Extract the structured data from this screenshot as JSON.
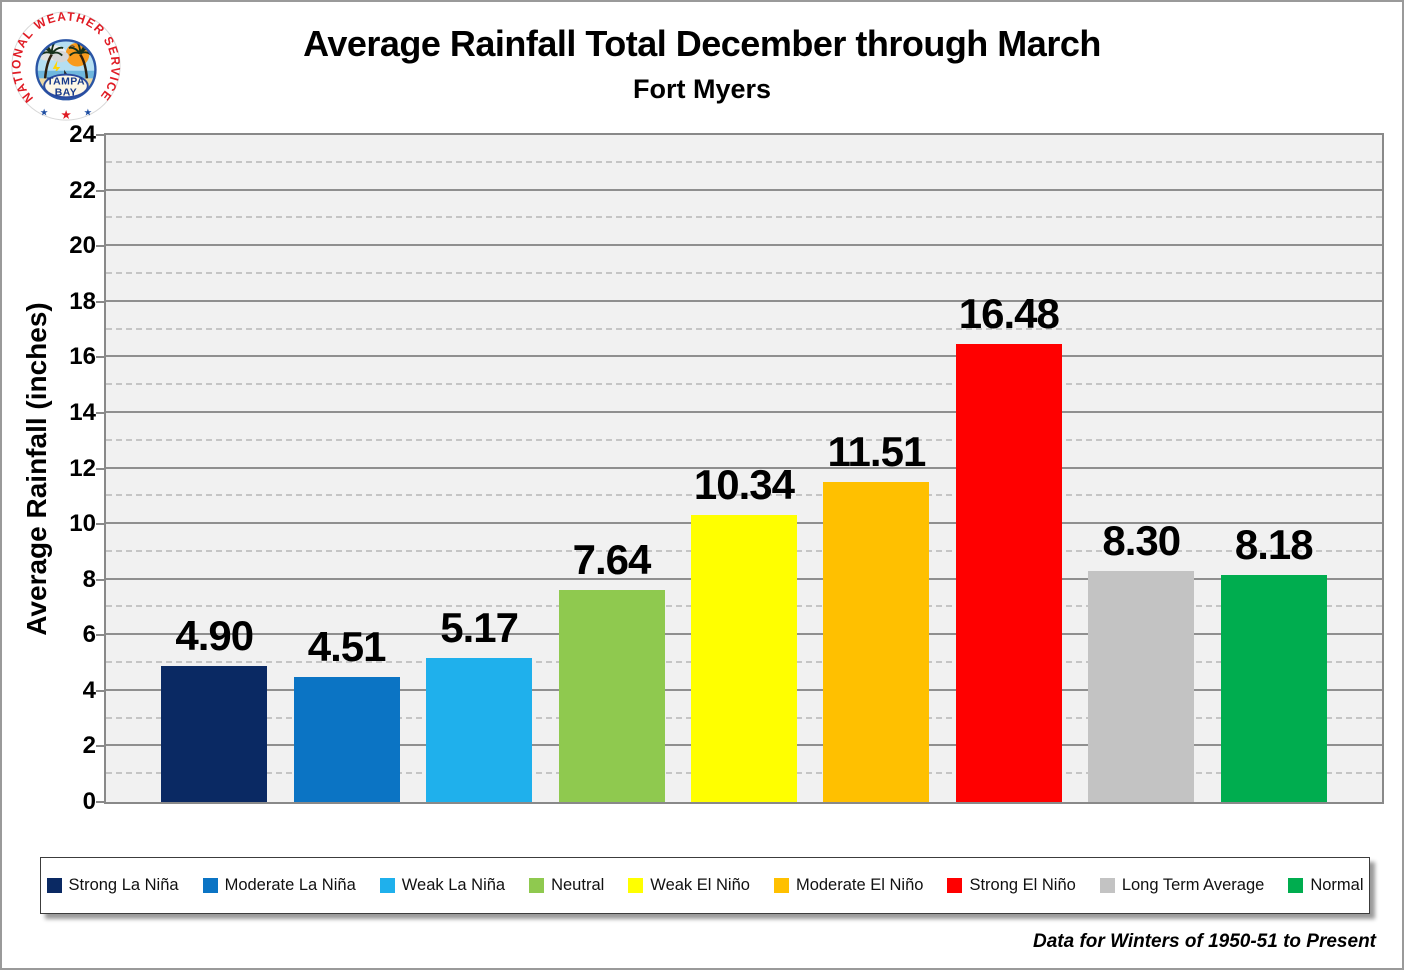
{
  "logo": {
    "ring_text": "NATIONAL WEATHER SERVICE",
    "city_line1": "TAMPA",
    "city_line2": "BAY",
    "star": "★",
    "ring_text_color": "#e01b24",
    "star_side_color": "#1d4da2",
    "star_mid_color": "#e01b24"
  },
  "chart_data": {
    "type": "bar",
    "title": "Average Rainfall Total December through March",
    "subtitle": "Fort Myers",
    "ylabel": "Average Rainfall (inches)",
    "xlabel": "",
    "categories": [
      "Strong La Niña",
      "Moderate La Niña",
      "Weak La Niña",
      "Neutral",
      "Weak El Niño",
      "Moderate El Niño",
      "Strong El Niño",
      "Long Term Average",
      "Normal"
    ],
    "values": [
      4.9,
      4.51,
      5.17,
      7.64,
      10.34,
      11.51,
      16.48,
      8.3,
      8.18
    ],
    "value_labels": [
      "4.90",
      "4.51",
      "5.17",
      "7.64",
      "10.34",
      "11.51",
      "16.48",
      "8.30",
      "8.18"
    ],
    "colors": [
      "#0a2963",
      "#0b74c4",
      "#1fb0ec",
      "#8fc94f",
      "#ffff00",
      "#ffc000",
      "#ff0000",
      "#c3c3c3",
      "#00ad4f"
    ],
    "ylim": [
      0,
      24
    ],
    "yticks": [
      0,
      2,
      4,
      6,
      8,
      10,
      12,
      14,
      16,
      18,
      20,
      22,
      24
    ],
    "minor_step": 1,
    "major_step": 2,
    "grid": "major solid gray every 2, minor dashed light-gray every 1",
    "plot_bg": "#f1f1f1",
    "major_grid_color": "#8f8f8f",
    "minor_grid_color": "#c5c5c5",
    "legend_position": "bottom"
  },
  "footer": {
    "note": "Data for Winters of 1950-51 to Present"
  }
}
